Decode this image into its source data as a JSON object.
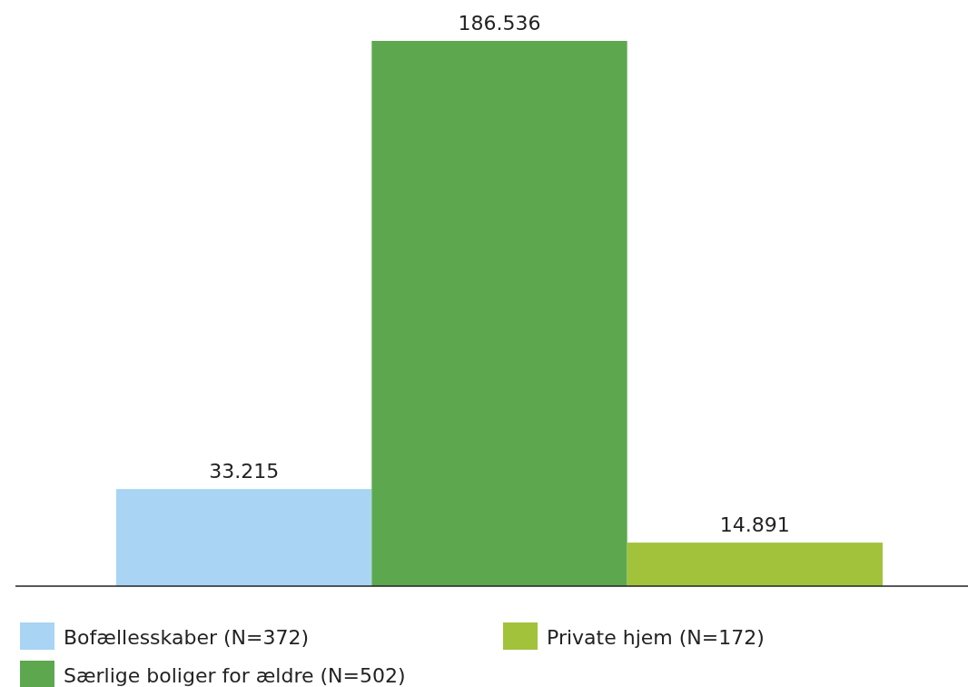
{
  "chart_data": {
    "type": "bar",
    "categories": [
      null
    ],
    "series": [
      {
        "name": "Bofællesskaber (N=372)",
        "color": "#a9d4f4",
        "values": [
          33215
        ],
        "value_labels": [
          "33.215"
        ]
      },
      {
        "name": "Særlige boliger for ældre (N=502)",
        "color": "#5da84f",
        "values": [
          186536
        ],
        "value_labels": [
          "186.536"
        ]
      },
      {
        "name": "Private hjem (N=172)",
        "color": "#a2c23c",
        "values": [
          14891
        ],
        "value_labels": [
          "14.891"
        ]
      }
    ],
    "legend": "bottom"
  }
}
